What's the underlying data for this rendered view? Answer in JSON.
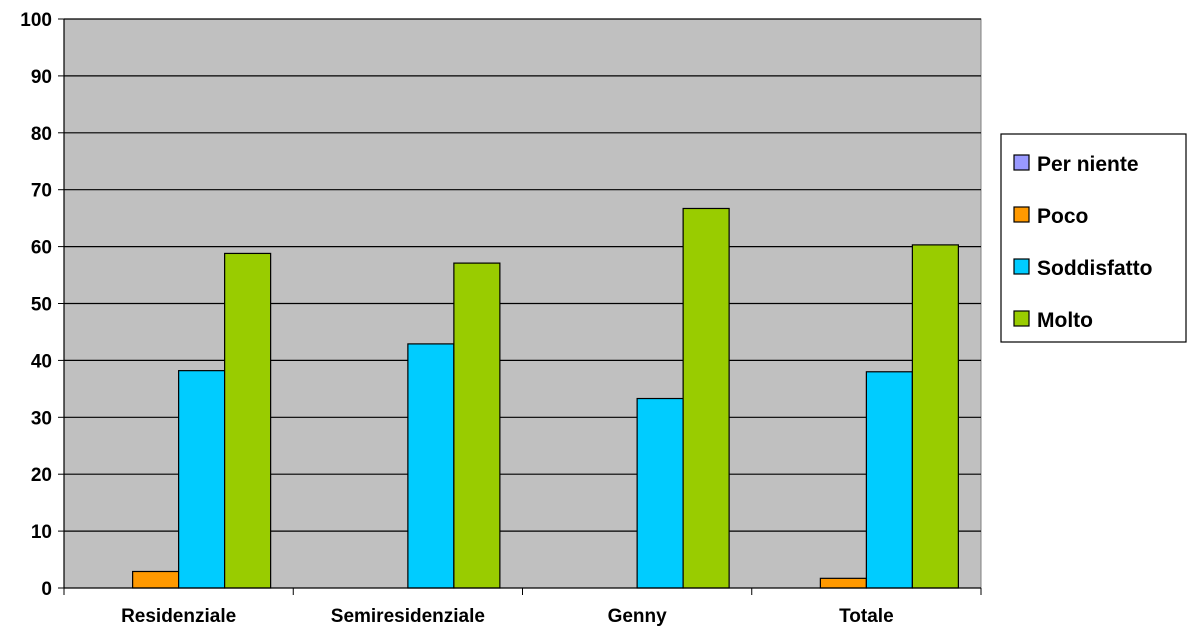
{
  "chart_data": {
    "type": "bar",
    "categories": [
      "Residenziale",
      "Semiresidenziale",
      "Genny",
      "Totale"
    ],
    "series": [
      {
        "name": "Per niente",
        "color": "#9999ff",
        "values": [
          0,
          0,
          0,
          0
        ]
      },
      {
        "name": "Poco",
        "color": "#ff9900",
        "values": [
          2.9,
          0,
          0,
          1.7
        ]
      },
      {
        "name": "Soddisfatto",
        "color": "#00ccff",
        "values": [
          38.2,
          42.9,
          33.3,
          38.0
        ]
      },
      {
        "name": "Molto",
        "color": "#99cc00",
        "values": [
          58.8,
          57.1,
          66.7,
          60.3
        ]
      }
    ],
    "ylim": [
      0,
      100
    ],
    "yticks": [
      "0",
      "10",
      "20",
      "30",
      "40",
      "50",
      "60",
      "70",
      "80",
      "90",
      "100"
    ],
    "grid": true,
    "plot_background": "#c0c0c0",
    "legend_position": "right"
  }
}
